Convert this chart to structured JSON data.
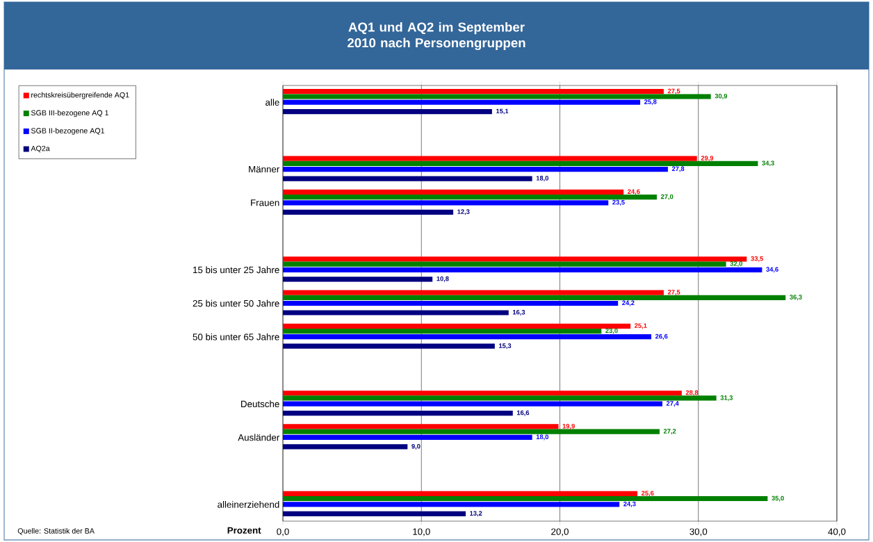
{
  "chart_data": {
    "type": "bar",
    "orientation": "horizontal",
    "title": "AQ1 und AQ2 im September 2010 nach Personengruppen",
    "xlabel": "Prozent",
    "annotations": [
      "Quelle: Statistik der BA"
    ],
    "categories": [
      "alle",
      null,
      "Männer",
      "Frauen",
      null,
      "15 bis unter 25 Jahre",
      "25 bis unter 50 Jahre",
      "50 bis unter 65 Jahre",
      null,
      "Deutsche",
      "Ausländer",
      null,
      "alleinerziehend"
    ],
    "series": [
      {
        "name": "rechtskreisübergreifende AQ1",
        "color": "#ff0000",
        "values": [
          27.5,
          null,
          29.9,
          24.6,
          null,
          33.5,
          27.5,
          25.1,
          null,
          28.8,
          19.9,
          null,
          25.6
        ],
        "value_labels": [
          "27,5",
          null,
          "29,9",
          "24,6",
          null,
          "33,5",
          "27,5",
          "25,1",
          null,
          "28,8",
          "19,9",
          null,
          "25,6"
        ]
      },
      {
        "name": "SGB III-bezogene AQ 1",
        "color": "#008000",
        "values": [
          30.9,
          null,
          34.3,
          27.0,
          null,
          32.0,
          36.3,
          23.0,
          null,
          31.3,
          27.2,
          null,
          35.0
        ],
        "value_labels": [
          "30,9",
          null,
          "34,3",
          "27,0",
          null,
          "32,0",
          "36,3",
          "23,0",
          null,
          "31,3",
          "27,2",
          null,
          "35,0"
        ]
      },
      {
        "name": "SGB II-bezogene AQ1",
        "color": "#0000ff",
        "values": [
          25.8,
          null,
          27.8,
          23.5,
          null,
          34.6,
          24.2,
          26.6,
          null,
          27.4,
          18.0,
          null,
          24.3
        ],
        "value_labels": [
          "25,8",
          null,
          "27,8",
          "23,5",
          null,
          "34,6",
          "24,2",
          "26,6",
          null,
          "27,4",
          "18,0",
          null,
          "24,3"
        ]
      },
      {
        "name": "AQ2a",
        "color": "#000080",
        "values": [
          15.1,
          null,
          18.0,
          12.3,
          null,
          10.8,
          16.3,
          15.3,
          null,
          16.6,
          9.0,
          null,
          13.2
        ],
        "value_labels": [
          "15,1",
          null,
          "18,0",
          "12,3",
          null,
          "10,8",
          "16,3",
          "15,3",
          null,
          "16,6",
          "9,0",
          null,
          "13,2"
        ]
      }
    ],
    "xlim": [
      0,
      40
    ],
    "xticks": [
      {
        "value": 0,
        "label": "0,0"
      },
      {
        "value": 10,
        "label": "10,0"
      },
      {
        "value": 20,
        "label": "20,0"
      },
      {
        "value": 30,
        "label": "30,0"
      },
      {
        "value": 40,
        "label": "40,0"
      }
    ],
    "grid": "x",
    "legend": "top left"
  }
}
